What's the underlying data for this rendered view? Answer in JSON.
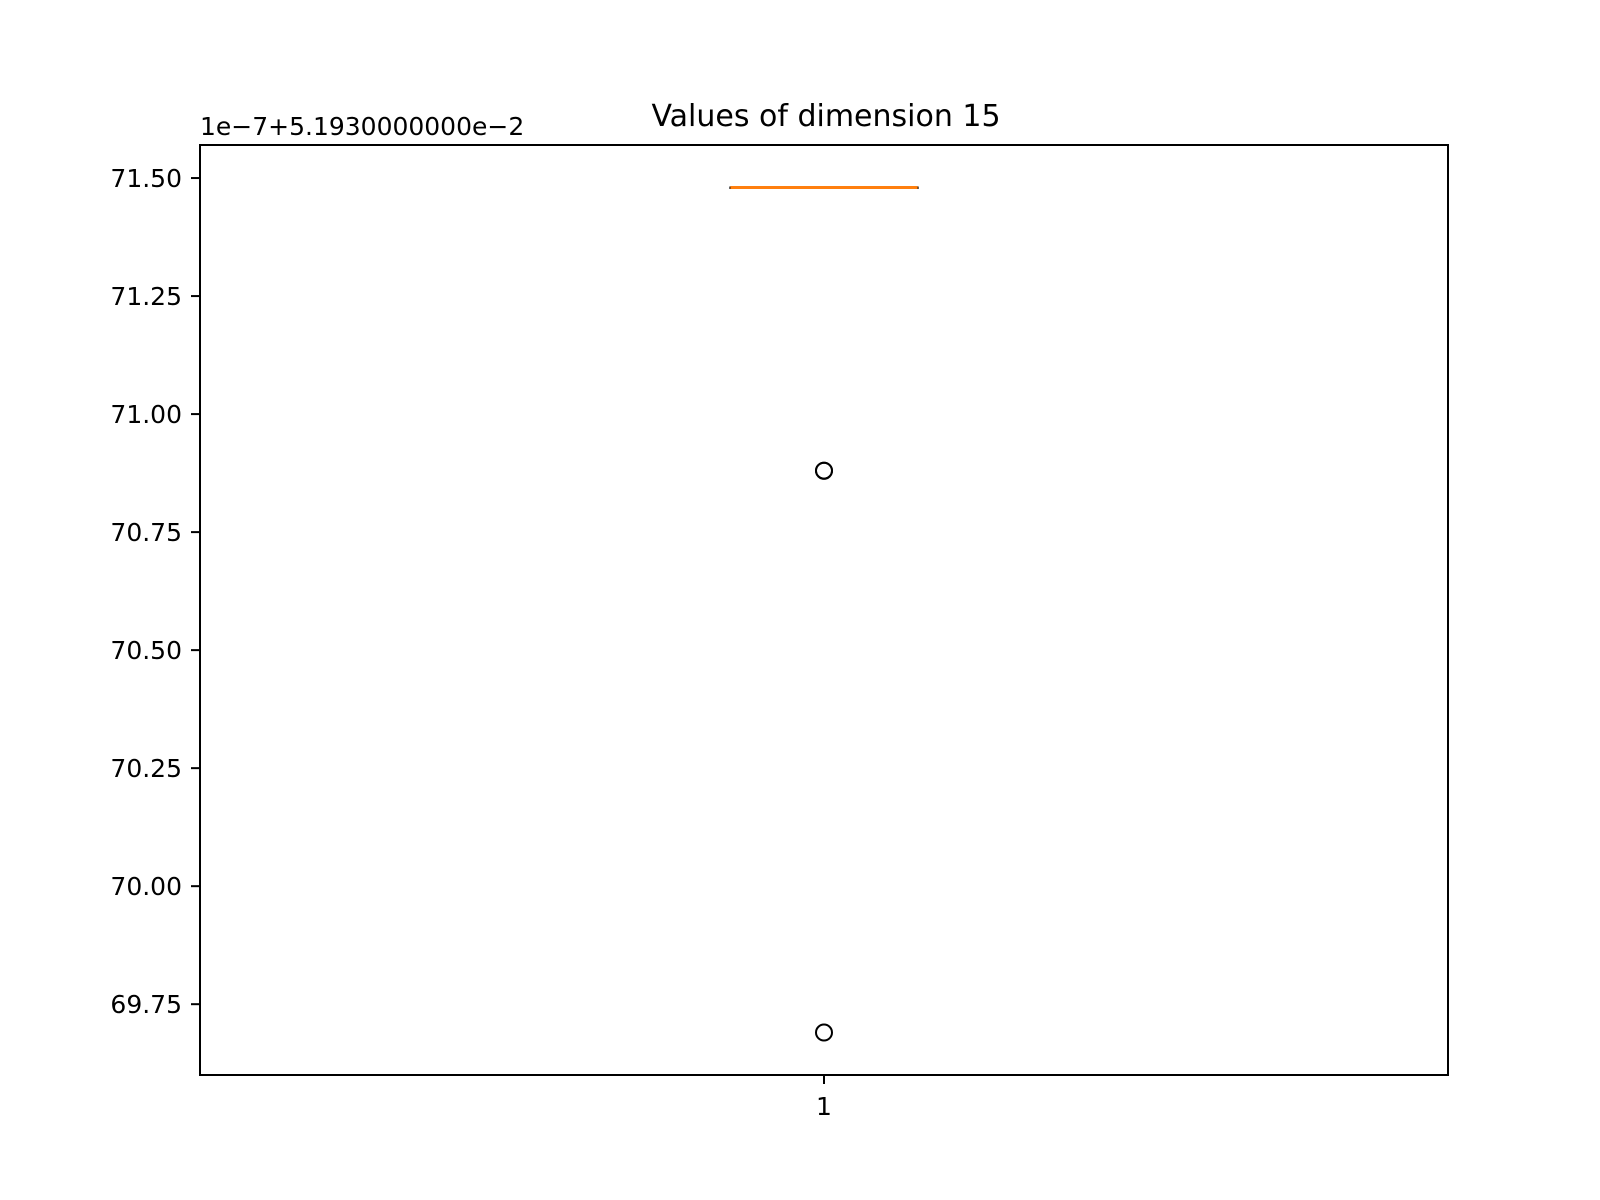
{
  "chart_data": {
    "type": "box",
    "title": "Values of dimension 15",
    "xlabel": "",
    "ylabel": "",
    "offset_label": "1e−7+5.1930000000e−2",
    "categories": [
      "1"
    ],
    "ylim": [
      69.6,
      71.57
    ],
    "yticks": [
      69.75,
      70.0,
      70.25,
      70.5,
      70.75,
      71.0,
      71.25,
      71.5
    ],
    "ytick_labels": [
      "69.75",
      "70.00",
      "70.25",
      "70.50",
      "70.75",
      "71.00",
      "71.25",
      "71.50"
    ],
    "boxes": [
      {
        "category": "1",
        "median": 71.48,
        "q1": 71.48,
        "q3": 71.48,
        "whisker_low": 71.48,
        "whisker_high": 71.48,
        "outliers": [
          70.88,
          70.88,
          69.69
        ]
      }
    ],
    "grid": false,
    "legend": "none",
    "colors": {
      "median": "#ff7f0e",
      "box": "#000000",
      "outlier": "#000000"
    }
  }
}
